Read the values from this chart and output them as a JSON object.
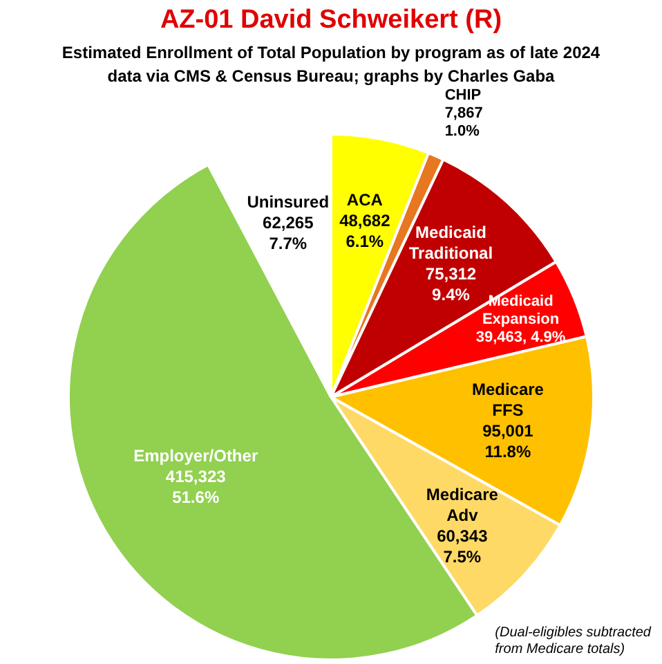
{
  "chart_data": {
    "type": "pie",
    "title": "AZ-01 David Schweikert (R)",
    "subtitle": "Estimated Enrollment of Total Population by program as of late 2024\ndata via CMS & Census Bureau; graphs by Charles Gaba",
    "categories": [
      "ACA",
      "CHIP",
      "Medicaid Traditional",
      "Medicaid Expansion",
      "Medicare FFS",
      "Medicare Adv",
      "Employer/Other",
      "Uninsured"
    ],
    "values": [
      48682,
      7867,
      75312,
      39463,
      95001,
      60343,
      415323,
      62265
    ],
    "colors": [
      "#ffff00",
      "#e87722",
      "#c00000",
      "#ff0000",
      "#ffc000",
      "#ffd966",
      "#92d050",
      "#ffffff"
    ],
    "value_labels": [
      "48,682\n6.1%",
      "7,867\n1.0%",
      "75,312\n9.4%",
      "39,463, 4.9%",
      "95,001\n11.8%",
      "60,343\n7.5%",
      "415,323\n51.6%",
      "62,265\n7.7%"
    ],
    "legend": false,
    "annotations": [
      "(Dual-eligibles subtracted\nfrom Medicare totals)"
    ]
  }
}
